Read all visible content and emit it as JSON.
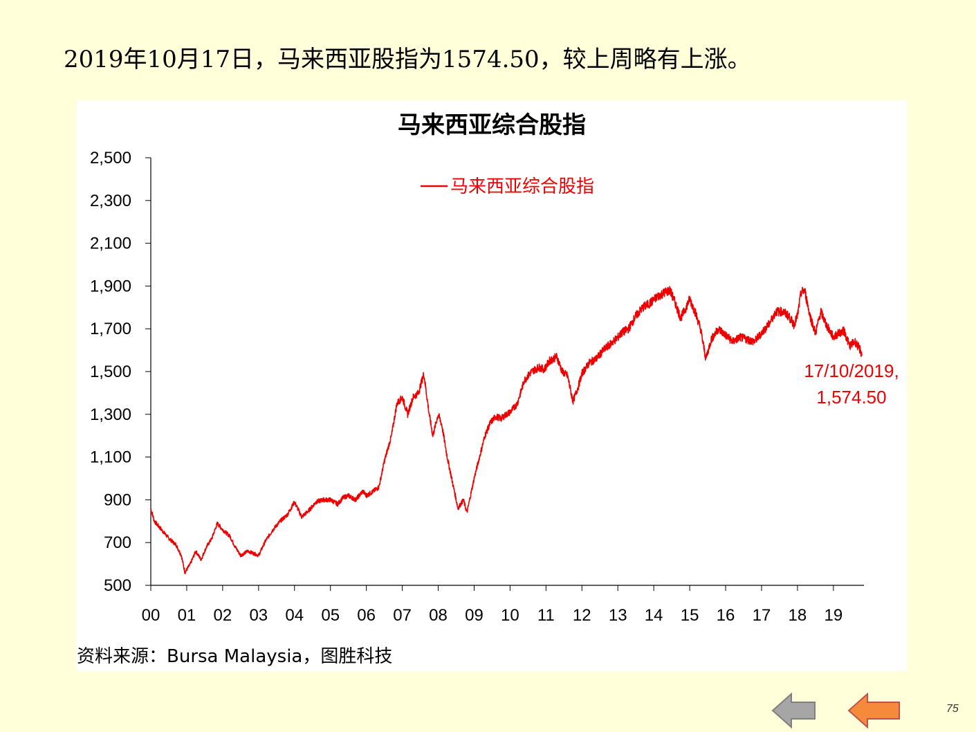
{
  "headline": "2019年10月17日，马来西亚股指为1574.50，较上周略有上涨。",
  "page_number": "75",
  "source": "资料来源：Bursa Malaysia，图胜科技",
  "colors": {
    "background": "#FFFFD9",
    "series": "#EE0000",
    "nav_back": "#A6A6A6",
    "nav_forward": "#F58A3C"
  },
  "icons": {
    "back": "left-arrow-icon",
    "forward": "left-arrow-icon"
  },
  "chart_data": {
    "type": "line",
    "title": "马来西亚综合股指",
    "xlabel": "",
    "ylabel": "",
    "ylim": [
      500,
      2500
    ],
    "yticks": [
      "2,500",
      "2,300",
      "2,100",
      "1,900",
      "1,700",
      "1,500",
      "1,300",
      "1,100",
      "900",
      "700",
      "500"
    ],
    "xticks": [
      "00",
      "01",
      "02",
      "03",
      "04",
      "05",
      "06",
      "07",
      "08",
      "09",
      "10",
      "11",
      "12",
      "13",
      "14",
      "15",
      "16",
      "17",
      "18",
      "19"
    ],
    "xlim": [
      2000.0,
      2019.85
    ],
    "grid": false,
    "legend_position": "top-center",
    "series": [
      {
        "name": "马来西亚综合股指",
        "x": [
          2000.0,
          2000.1,
          2000.3,
          2000.5,
          2000.7,
          2000.85,
          2000.95,
          2001.1,
          2001.25,
          2001.4,
          2001.55,
          2001.7,
          2001.85,
          2002.0,
          2002.2,
          2002.35,
          2002.5,
          2002.7,
          2002.85,
          2003.0,
          2003.2,
          2003.4,
          2003.6,
          2003.8,
          2004.0,
          2004.2,
          2004.4,
          2004.6,
          2004.8,
          2005.0,
          2005.2,
          2005.35,
          2005.5,
          2005.7,
          2005.9,
          2006.0,
          2006.2,
          2006.35,
          2006.5,
          2006.7,
          2006.85,
          2007.0,
          2007.15,
          2007.3,
          2007.45,
          2007.6,
          2007.75,
          2007.85,
          2008.0,
          2008.1,
          2008.25,
          2008.4,
          2008.55,
          2008.7,
          2008.8,
          2008.9,
          2009.0,
          2009.15,
          2009.3,
          2009.45,
          2009.6,
          2009.75,
          2009.9,
          2010.0,
          2010.2,
          2010.4,
          2010.6,
          2010.8,
          2010.95,
          2011.1,
          2011.3,
          2011.45,
          2011.6,
          2011.75,
          2011.9,
          2012.0,
          2012.2,
          2012.4,
          2012.6,
          2012.8,
          2013.0,
          2013.1,
          2013.3,
          2013.5,
          2013.7,
          2013.9,
          2014.1,
          2014.3,
          2014.45,
          2014.6,
          2014.75,
          2014.9,
          2015.0,
          2015.15,
          2015.3,
          2015.45,
          2015.6,
          2015.8,
          2016.0,
          2016.2,
          2016.4,
          2016.6,
          2016.8,
          2017.0,
          2017.2,
          2017.4,
          2017.6,
          2017.75,
          2017.9,
          2018.0,
          2018.1,
          2018.2,
          2018.35,
          2018.5,
          2018.65,
          2018.8,
          2019.0,
          2019.15,
          2019.3,
          2019.45,
          2019.6,
          2019.75,
          2019.79
        ],
        "values": [
          860,
          800,
          760,
          720,
          690,
          640,
          560,
          600,
          660,
          620,
          680,
          720,
          790,
          760,
          730,
          680,
          640,
          660,
          650,
          640,
          710,
          760,
          800,
          830,
          890,
          820,
          850,
          890,
          900,
          900,
          880,
          910,
          920,
          900,
          940,
          920,
          940,
          960,
          1080,
          1200,
          1350,
          1380,
          1300,
          1380,
          1400,
          1490,
          1300,
          1200,
          1300,
          1250,
          1100,
          980,
          860,
          900,
          840,
          920,
          1000,
          1100,
          1200,
          1260,
          1290,
          1280,
          1300,
          1310,
          1350,
          1460,
          1500,
          1520,
          1510,
          1550,
          1570,
          1500,
          1480,
          1360,
          1430,
          1490,
          1540,
          1560,
          1600,
          1630,
          1660,
          1680,
          1700,
          1760,
          1800,
          1820,
          1850,
          1870,
          1880,
          1820,
          1750,
          1800,
          1840,
          1780,
          1700,
          1560,
          1650,
          1700,
          1670,
          1640,
          1660,
          1650,
          1640,
          1680,
          1720,
          1780,
          1780,
          1760,
          1720,
          1760,
          1870,
          1880,
          1760,
          1680,
          1780,
          1720,
          1660,
          1680,
          1690,
          1620,
          1640,
          1600,
          1574.5
        ]
      }
    ],
    "annotations": [
      {
        "text": "17/10/2019,",
        "x": 2019.79,
        "y": 1574.5
      },
      {
        "text": "1,574.50",
        "x": 2019.79,
        "y": 1574.5
      }
    ]
  }
}
